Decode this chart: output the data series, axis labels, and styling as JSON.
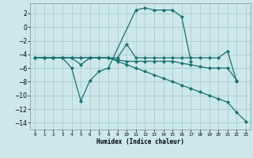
{
  "xlabel": "Humidex (Indice chaleur)",
  "xlim": [
    -0.5,
    23.5
  ],
  "ylim": [
    -15,
    3.5
  ],
  "yticks": [
    2,
    0,
    -2,
    -4,
    -6,
    -8,
    -10,
    -12,
    -14
  ],
  "xticks": [
    0,
    1,
    2,
    3,
    4,
    5,
    6,
    7,
    8,
    9,
    10,
    11,
    12,
    13,
    14,
    15,
    16,
    17,
    18,
    19,
    20,
    21,
    22,
    23
  ],
  "background_color": "#cce8e8",
  "grid_color": "#aacccc",
  "line_color": "#1a7070",
  "lines": [
    {
      "x": [
        0,
        1,
        2,
        3,
        4,
        5,
        6,
        7,
        8,
        11,
        12,
        13,
        14,
        15,
        16,
        17
      ],
      "y": [
        -4.5,
        -4.5,
        -4.5,
        -4.5,
        -6.0,
        -10.8,
        -7.8,
        -6.5,
        -6.0,
        2.5,
        2.8,
        2.5,
        2.5,
        2.5,
        1.5,
        -5.0
      ]
    },
    {
      "x": [
        0,
        1,
        2,
        3,
        4,
        5,
        6,
        7,
        8,
        9,
        10,
        11,
        12,
        13,
        14,
        15,
        16,
        17,
        18,
        19,
        20,
        21,
        22
      ],
      "y": [
        -4.5,
        -4.5,
        -4.5,
        -4.5,
        -4.5,
        -5.5,
        -4.5,
        -4.5,
        -4.5,
        -4.5,
        -2.5,
        -4.5,
        -4.5,
        -4.5,
        -4.5,
        -4.5,
        -4.5,
        -4.5,
        -4.5,
        -4.5,
        -4.5,
        -3.5,
        -8.0
      ]
    },
    {
      "x": [
        0,
        1,
        2,
        3,
        4,
        5,
        6,
        7,
        8,
        9,
        10,
        11,
        12,
        13,
        14,
        15,
        16,
        17,
        18,
        19,
        20,
        21,
        22
      ],
      "y": [
        -4.5,
        -4.5,
        -4.5,
        -4.5,
        -4.5,
        -4.5,
        -4.5,
        -4.5,
        -4.5,
        -4.8,
        -5.0,
        -5.0,
        -5.0,
        -5.0,
        -5.0,
        -5.0,
        -5.3,
        -5.5,
        -5.8,
        -6.0,
        -6.0,
        -6.0,
        -7.8
      ]
    },
    {
      "x": [
        0,
        1,
        2,
        3,
        4,
        5,
        6,
        7,
        8,
        9,
        10,
        11,
        12,
        13,
        14,
        15,
        16,
        17,
        18,
        19,
        20,
        21,
        22,
        23
      ],
      "y": [
        -4.5,
        -4.5,
        -4.5,
        -4.5,
        -4.5,
        -4.5,
        -4.5,
        -4.5,
        -4.5,
        -5.0,
        -5.5,
        -6.0,
        -6.5,
        -7.0,
        -7.5,
        -8.0,
        -8.5,
        -9.0,
        -9.5,
        -10.0,
        -10.5,
        -11.0,
        -12.5,
        -13.8
      ]
    }
  ]
}
